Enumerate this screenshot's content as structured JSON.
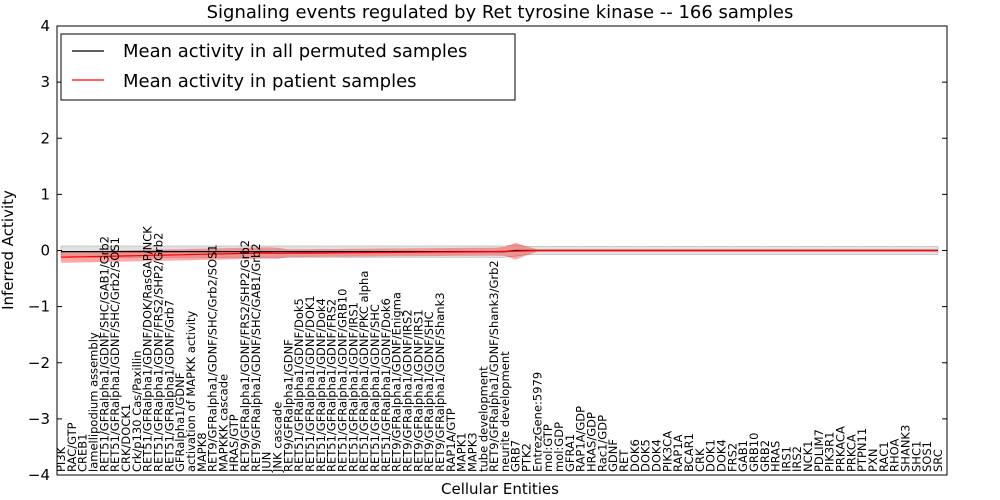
{
  "chart_data": {
    "type": "line",
    "title": "Signaling events regulated by Ret tyrosine kinase -- 166 samples",
    "xlabel": "Cellular Entities",
    "ylabel": "Inferred Activity",
    "ylim": [
      -4,
      4
    ],
    "yticks": [
      -4,
      -3,
      -2,
      -1,
      0,
      1,
      2,
      3,
      4
    ],
    "legend": {
      "placement": "top-left"
    },
    "series": [
      {
        "name": "Mean activity in all permuted samples",
        "color": "#000000"
      },
      {
        "name": "Mean activity in patient samples",
        "color": "#ff0000"
      }
    ],
    "categories": [
      "PI3K",
      "RAC/GTP",
      "CREB1",
      "lamellipodium assembly",
      "RET51/GFRalpha1/GDNF/SHC/GAB1/Grb2",
      "RET51/GFRalpha1/GDNF/SHC/Grb2/SOS1",
      "CRK/DOCK1",
      "Crk/p130 Cas/Paxillin",
      "RET51/GFRalpha1/GDNF/DOK/RasGAP/NCK",
      "RET51/GFRalpha1/GDNF/FRS2/SHP2/Grb2",
      "RET51/GFRalpha1/GDNF/Grb7",
      "GFRalpha1/GDNF",
      "activation of MAPKK activity",
      "MAPK8",
      "RET9/GFRalpha1/GDNF/SHC/Grb2/SOS1",
      "MAPKKK cascade",
      "HRAS/GTP",
      "RET9/GFRalpha1/GDNF/FRS2/SHP2/Grb2",
      "RET9/GFRalpha1/GDNF/SHC/GAB1/Grb2",
      "JUN",
      "JNK cascade",
      "RET9/GFRalpha1/GDNF",
      "RET51/GFRalpha1/GDNF/Dok5",
      "RET51/GFRalpha1/GDNF/DOK1",
      "RET51/GFRalpha1/GDNF/Dok4",
      "RET51/GFRalpha1/GDNF/FRS2",
      "RET51/GFRalpha1/GDNF/GRB10",
      "RET51/GFRalpha1/GDNF/IRS1",
      "RET51/GFRalpha1/GDNF/PKC alpha",
      "RET51/GFRalpha1/GDNF/SHC",
      "RET51/GFRalpha1/GDNF/Dok6",
      "RET9/GFRalpha1/GDNF/Enigma",
      "RET9/GFRalpha1/GDNF/IRS2",
      "RET9/GFRalpha1/GDNF/IRS1",
      "RET9/GFRalpha1/GDNF/SHC",
      "RET9/GFRalpha1/GDNF/Shank3",
      "RAP1A/GTP",
      "MAPK1",
      "MAPK3",
      "tube development",
      "RET9/GFRalpha1/GDNF/Shank3/Grb2",
      "neurite development",
      "GRB7",
      "PTK2",
      "EntrezGene:5979",
      "mol:GTP",
      "mol:GDP",
      "GFRA1",
      "RAP1A/GDP",
      "HRAS/GDP",
      "Rac1/GDP",
      "GDNF",
      "RET",
      "DOK6",
      "DOK5",
      "DOK4",
      "PIK3CA",
      "RAP1A",
      "BCAR1",
      "CRK",
      "DOK1",
      "DOK4",
      "FRS2",
      "GAB1",
      "GRB10",
      "GRB2",
      "HRAS",
      "IRS1",
      "IRS2",
      "NCK1",
      "PDLIM7",
      "PIK3R1",
      "PRKACA",
      "PRKCA",
      "PTPN11",
      "PXN",
      "RAC1",
      "RHOA",
      "SHANK3",
      "SHC1",
      "SOS1",
      "SRC"
    ]
  }
}
